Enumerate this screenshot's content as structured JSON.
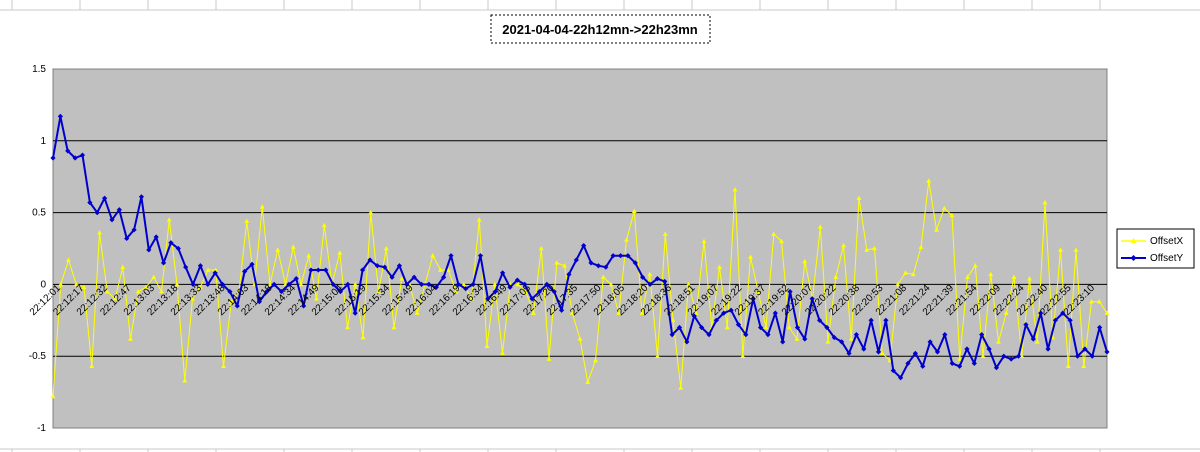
{
  "chart_data": {
    "type": "line",
    "title": "2021-04-04-22h12mn->22h23mn",
    "xlabel": "",
    "ylabel": "",
    "ylim": [
      -1,
      1.5
    ],
    "yticks": [
      -1,
      -0.5,
      0,
      0.5,
      1,
      1.5
    ],
    "ytick_labels": [
      "-1",
      "-0.5",
      "0",
      "0.5",
      "1",
      "1.5"
    ],
    "grid": true,
    "legend_position": "right",
    "x_tick_labels": [
      "22:12:01",
      "22:12:17",
      "22:12:32",
      "22:12:47",
      "22:13:03",
      "22:13:18",
      "22:13:33",
      "22:13:48",
      "22:14:03",
      "22:14:18",
      "22:14:34",
      "22:14:49",
      "22:15:04",
      "22:15:19",
      "22:15:34",
      "22:15:49",
      "22:16:04",
      "22:16:19",
      "22:16:34",
      "22:16:49",
      "22:17:05",
      "22:17:20",
      "22:17:35",
      "22:17:50",
      "22:18:05",
      "22:18:20",
      "22:18:36",
      "22:18:51",
      "22:19:07",
      "22:19:22",
      "22:19:37",
      "22:19:52",
      "22:20:07",
      "22:20:22",
      "22:20:38",
      "22:20:53",
      "22:21:08",
      "22:21:24",
      "22:21:39",
      "22:21:54",
      "22:22:09",
      "22:22:24",
      "22:22:40",
      "22:22:55",
      "22:23:10"
    ],
    "colors": {
      "plot_bg": "#c0c0c0",
      "offsetX": "#ffff00",
      "offsetY": "#0000cc"
    },
    "series": [
      {
        "name": "OffsetX",
        "color": "#ffff00",
        "marker": "triangle",
        "values": [
          -0.78,
          0.0,
          0.17,
          0.0,
          -0.02,
          -0.57,
          0.36,
          -0.05,
          -0.1,
          0.12,
          -0.38,
          -0.05,
          -0.02,
          0.05,
          -0.05,
          0.45,
          0.0,
          -0.67,
          -0.1,
          -0.02,
          0.1,
          0.1,
          -0.57,
          -0.12,
          -0.05,
          0.44,
          0.0,
          0.54,
          0.0,
          0.24,
          0.0,
          0.26,
          0.0,
          0.2,
          -0.1,
          0.41,
          0.0,
          0.22,
          -0.3,
          0.0,
          -0.37,
          0.5,
          -0.05,
          0.25,
          -0.3,
          0.04,
          0.0,
          -0.2,
          0.0,
          0.2,
          0.1,
          0.1,
          -0.05,
          0.0,
          -0.1,
          0.45,
          -0.43,
          0.0,
          -0.48,
          0.0,
          0.0,
          -0.05,
          -0.2,
          0.25,
          -0.52,
          0.15,
          0.13,
          -0.2,
          -0.38,
          -0.68,
          -0.53,
          0.05,
          0.0,
          -0.2,
          0.31,
          0.51,
          -0.2,
          0.07,
          -0.5,
          0.35,
          -0.25,
          -0.72,
          0.0,
          -0.2,
          0.3,
          -0.3,
          0.12,
          -0.3,
          0.66,
          -0.5,
          0.19,
          -0.05,
          -0.3,
          0.35,
          0.3,
          -0.3,
          -0.38,
          0.16,
          -0.1,
          0.4,
          -0.4,
          0.05,
          0.27,
          -0.38,
          0.6,
          0.24,
          0.25,
          -0.48,
          -0.53,
          0.0,
          0.08,
          0.07,
          0.26,
          0.72,
          0.38,
          0.53,
          0.48,
          -0.52,
          0.05,
          0.13,
          -0.5,
          0.07,
          -0.4,
          -0.2,
          0.05,
          -0.5,
          0.04,
          -0.4,
          0.57,
          -0.37,
          0.24,
          -0.57,
          0.24,
          -0.57,
          -0.12,
          -0.12,
          -0.2
        ]
      },
      {
        "name": "OffsetY",
        "color": "#0000cc",
        "marker": "diamond",
        "values": [
          0.88,
          1.17,
          0.93,
          0.88,
          0.9,
          0.57,
          0.5,
          0.6,
          0.45,
          0.52,
          0.32,
          0.38,
          0.61,
          0.24,
          0.33,
          0.15,
          0.29,
          0.25,
          0.12,
          0.0,
          0.13,
          0.0,
          0.08,
          0.0,
          -0.05,
          -0.15,
          0.09,
          0.14,
          -0.12,
          -0.05,
          0.0,
          -0.05,
          0.0,
          0.04,
          -0.15,
          0.1,
          0.1,
          0.1,
          0.0,
          -0.05,
          0.0,
          -0.2,
          0.1,
          0.17,
          0.13,
          0.12,
          0.05,
          0.13,
          0.0,
          0.05,
          0.0,
          0.0,
          -0.02,
          0.05,
          0.2,
          0.0,
          -0.03,
          0.0,
          0.2,
          -0.1,
          -0.05,
          0.08,
          -0.02,
          0.03,
          0.0,
          -0.1,
          -0.05,
          0.0,
          -0.05,
          -0.18,
          0.07,
          0.17,
          0.27,
          0.15,
          0.13,
          0.12,
          0.2,
          0.2,
          0.2,
          0.15,
          0.05,
          0.0,
          0.04,
          0.02,
          -0.35,
          -0.3,
          -0.4,
          -0.22,
          -0.3,
          -0.35,
          -0.25,
          -0.2,
          -0.18,
          -0.28,
          -0.35,
          -0.1,
          -0.3,
          -0.35,
          -0.2,
          -0.4,
          -0.05,
          -0.3,
          -0.38,
          -0.1,
          -0.25,
          -0.3,
          -0.37,
          -0.4,
          -0.48,
          -0.35,
          -0.45,
          -0.25,
          -0.47,
          -0.25,
          -0.6,
          -0.65,
          -0.55,
          -0.48,
          -0.57,
          -0.4,
          -0.47,
          -0.35,
          -0.55,
          -0.57,
          -0.45,
          -0.55,
          -0.35,
          -0.45,
          -0.58,
          -0.5,
          -0.52,
          -0.5,
          -0.28,
          -0.38,
          -0.2,
          -0.45,
          -0.25,
          -0.2,
          -0.25,
          -0.5,
          -0.45,
          -0.5,
          -0.3,
          -0.47
        ]
      }
    ]
  }
}
